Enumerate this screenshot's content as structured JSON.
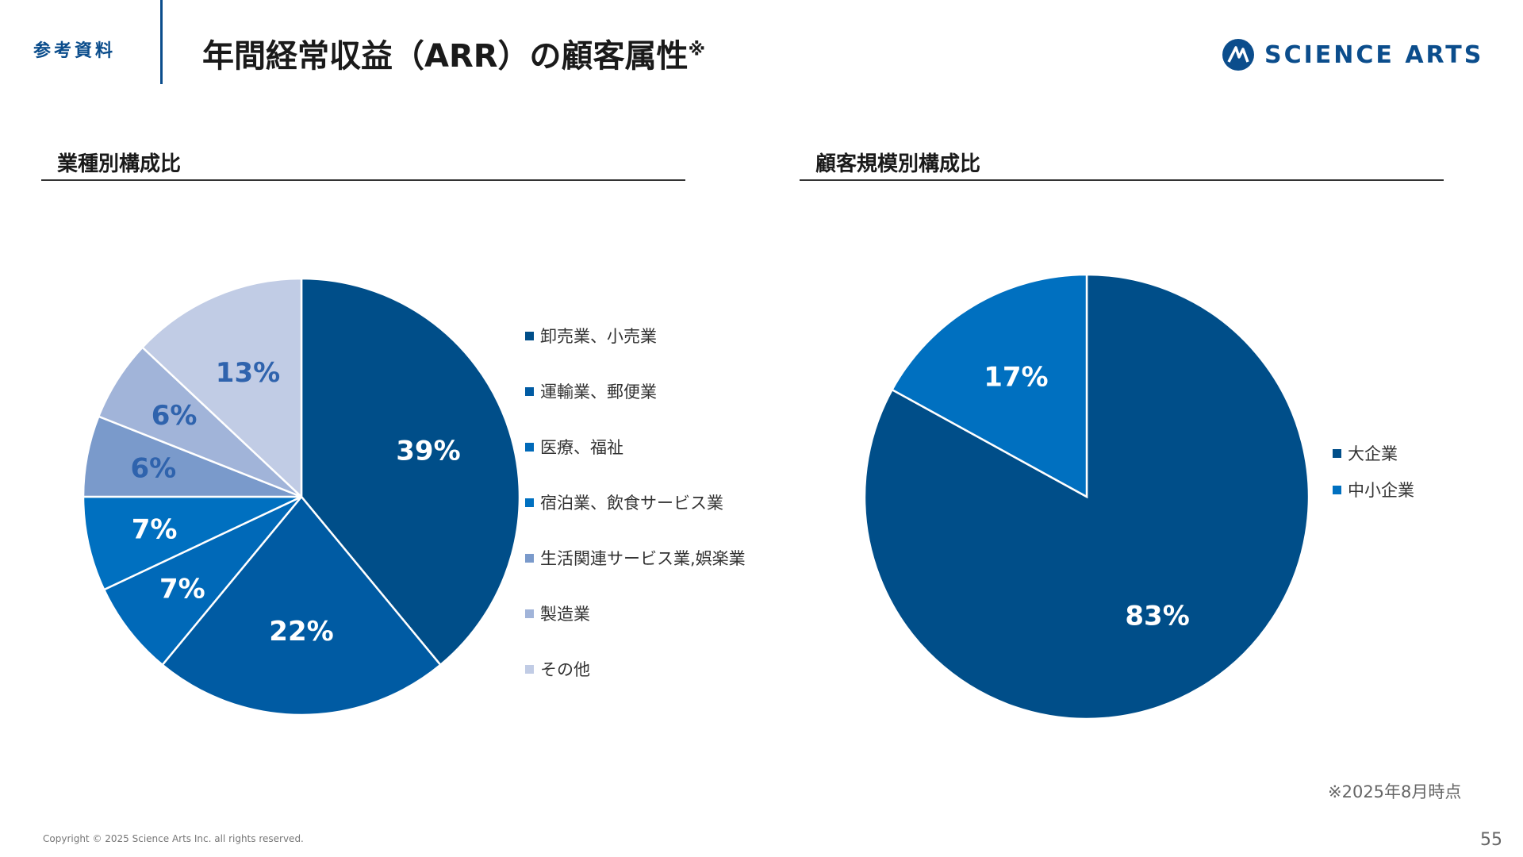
{
  "header": {
    "section_tag": "参考資料",
    "title": "年間経常収益（ARR）の顧客属性",
    "title_mark": "※",
    "brand_name": "SCIENCE ARTS"
  },
  "colors": {
    "brand": "#0b4d8c",
    "divider": "#0b4d8c"
  },
  "chart_data": [
    {
      "type": "pie",
      "title": "業種別構成比",
      "categories": [
        "卸売業、小売業",
        "運輸業、郵便業",
        "医療、福祉",
        "宿泊業、飲食サービス業",
        "生活関連サービス業,娯楽業",
        "製造業",
        "その他"
      ],
      "values": [
        39,
        22,
        7,
        7,
        6,
        6,
        13
      ],
      "labels": [
        "39%",
        "22%",
        "7%",
        "7%",
        "6%",
        "6%",
        "13%"
      ],
      "colors": [
        "#004e89",
        "#005ba3",
        "#0069b8",
        "#0070c0",
        "#7a9acb",
        "#a1b4d9",
        "#c1cce5"
      ],
      "label_colors": [
        "#ffffff",
        "#ffffff",
        "#ffffff",
        "#ffffff",
        "#2f63ad",
        "#2f63ad",
        "#2f63ad"
      ],
      "start_angle": 0,
      "direction": "clockwise",
      "legend_position": "right"
    },
    {
      "type": "pie",
      "title": "顧客規模別構成比",
      "categories": [
        "大企業",
        "中小企業"
      ],
      "values": [
        83,
        17
      ],
      "labels": [
        "83%",
        "17%"
      ],
      "colors": [
        "#004e89",
        "#0070c0"
      ],
      "label_colors": [
        "#ffffff",
        "#ffffff"
      ],
      "start_angle": 0,
      "direction": "clockwise",
      "legend_position": "right"
    }
  ],
  "footer": {
    "note": "※2025年8月時点",
    "copyright": "Copyright © 2025 Science Arts Inc. all rights reserved.",
    "page_number": "55"
  }
}
